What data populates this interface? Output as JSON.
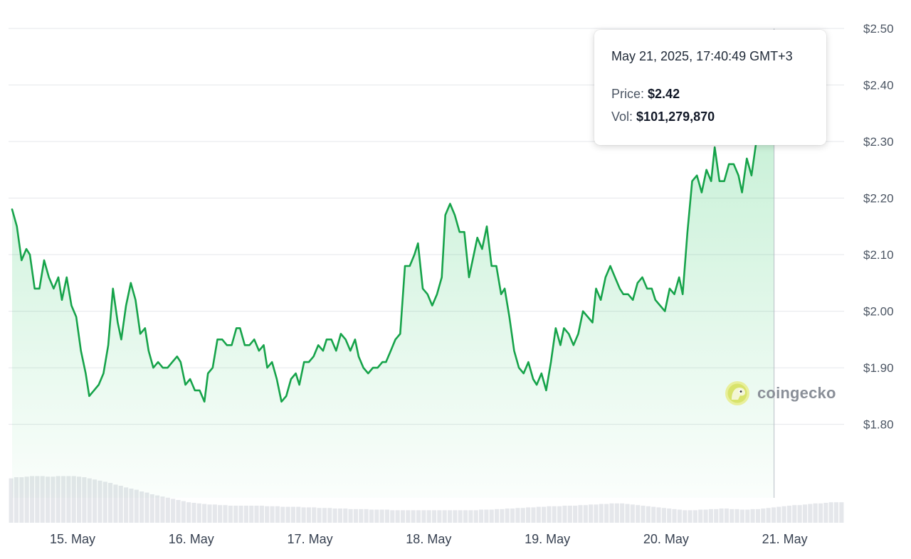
{
  "chart_data": {
    "type": "line",
    "title": "",
    "xlabel": "",
    "ylabel": "",
    "ylim": [
      1.67,
      2.51
    ],
    "y_ticks": [
      {
        "value": 2.5,
        "label": "$2.50"
      },
      {
        "value": 2.4,
        "label": "$2.40"
      },
      {
        "value": 2.3,
        "label": "$2.30"
      },
      {
        "value": 2.2,
        "label": "$2.20"
      },
      {
        "value": 2.1,
        "label": "$2.10"
      },
      {
        "value": 2.0,
        "label": "$2.00"
      },
      {
        "value": 1.9,
        "label": "$1.90"
      },
      {
        "value": 1.8,
        "label": "$1.80"
      }
    ],
    "x_ticks": [
      {
        "value": 15,
        "label": "15. May"
      },
      {
        "value": 16,
        "label": "16. May"
      },
      {
        "value": 17,
        "label": "17. May"
      },
      {
        "value": 18,
        "label": "18. May"
      },
      {
        "value": 19,
        "label": "19. May"
      },
      {
        "value": 20,
        "label": "20. May"
      },
      {
        "value": 21,
        "label": "21. May"
      }
    ],
    "xlim": [
      14.73,
      21.74
    ],
    "grid": true,
    "colors": {
      "line": "#16a34a",
      "area_top": "#16a34a",
      "grid": "#e5e7eb",
      "volume": "#e5e7eb",
      "marker_halo": "#86efac"
    },
    "series": [
      {
        "values": [
          [
            14.73,
            2.18
          ],
          [
            14.77,
            2.15
          ],
          [
            14.81,
            2.09
          ],
          [
            14.85,
            2.11
          ],
          [
            14.88,
            2.1
          ],
          [
            14.92,
            2.04
          ],
          [
            14.96,
            2.04
          ],
          [
            15.0,
            2.09
          ],
          [
            15.04,
            2.06
          ],
          [
            15.08,
            2.04
          ],
          [
            15.12,
            2.06
          ],
          [
            15.15,
            2.02
          ],
          [
            15.19,
            2.06
          ],
          [
            15.23,
            2.01
          ],
          [
            15.27,
            1.99
          ],
          [
            15.31,
            1.93
          ],
          [
            15.35,
            1.89
          ],
          [
            15.38,
            1.85
          ],
          [
            15.42,
            1.86
          ],
          [
            15.46,
            1.87
          ],
          [
            15.5,
            1.89
          ],
          [
            15.54,
            1.94
          ],
          [
            15.58,
            2.04
          ],
          [
            15.62,
            1.98
          ],
          [
            15.65,
            1.95
          ],
          [
            15.69,
            2.01
          ],
          [
            15.73,
            2.05
          ],
          [
            15.77,
            2.02
          ],
          [
            15.81,
            1.96
          ],
          [
            15.85,
            1.97
          ],
          [
            15.88,
            1.93
          ],
          [
            15.92,
            1.9
          ],
          [
            15.96,
            1.91
          ],
          [
            16.0,
            1.9
          ],
          [
            16.04,
            1.9
          ],
          [
            16.08,
            1.91
          ],
          [
            16.12,
            1.92
          ],
          [
            16.15,
            1.91
          ],
          [
            16.19,
            1.87
          ],
          [
            16.23,
            1.88
          ],
          [
            16.27,
            1.86
          ],
          [
            16.31,
            1.86
          ],
          [
            16.35,
            1.84
          ],
          [
            16.38,
            1.89
          ],
          [
            16.42,
            1.9
          ],
          [
            16.46,
            1.95
          ],
          [
            16.5,
            1.95
          ],
          [
            16.54,
            1.94
          ],
          [
            16.58,
            1.94
          ],
          [
            16.62,
            1.97
          ],
          [
            16.65,
            1.97
          ],
          [
            16.69,
            1.94
          ],
          [
            16.73,
            1.94
          ],
          [
            16.77,
            1.95
          ],
          [
            16.81,
            1.93
          ],
          [
            16.85,
            1.94
          ],
          [
            16.88,
            1.9
          ],
          [
            16.92,
            1.91
          ],
          [
            16.96,
            1.88
          ],
          [
            17.0,
            1.84
          ],
          [
            17.04,
            1.85
          ],
          [
            17.08,
            1.88
          ],
          [
            17.12,
            1.89
          ],
          [
            17.15,
            1.87
          ],
          [
            17.19,
            1.91
          ],
          [
            17.23,
            1.91
          ],
          [
            17.27,
            1.92
          ],
          [
            17.31,
            1.94
          ],
          [
            17.35,
            1.93
          ],
          [
            17.38,
            1.95
          ],
          [
            17.42,
            1.95
          ],
          [
            17.46,
            1.93
          ],
          [
            17.5,
            1.96
          ],
          [
            17.54,
            1.95
          ],
          [
            17.58,
            1.93
          ],
          [
            17.62,
            1.95
          ],
          [
            17.65,
            1.92
          ],
          [
            17.69,
            1.9
          ],
          [
            17.73,
            1.89
          ],
          [
            17.77,
            1.9
          ],
          [
            17.81,
            1.9
          ],
          [
            17.85,
            1.91
          ],
          [
            17.88,
            1.91
          ],
          [
            17.92,
            1.93
          ],
          [
            17.96,
            1.95
          ],
          [
            18.0,
            1.96
          ],
          [
            18.04,
            2.08
          ],
          [
            18.08,
            2.08
          ],
          [
            18.12,
            2.1
          ],
          [
            18.15,
            2.12
          ],
          [
            18.19,
            2.04
          ],
          [
            18.23,
            2.03
          ],
          [
            18.27,
            2.01
          ],
          [
            18.31,
            2.03
          ],
          [
            18.35,
            2.06
          ],
          [
            18.38,
            2.17
          ],
          [
            18.42,
            2.19
          ],
          [
            18.46,
            2.17
          ],
          [
            18.5,
            2.14
          ],
          [
            18.54,
            2.14
          ],
          [
            18.58,
            2.06
          ],
          [
            18.62,
            2.1
          ],
          [
            18.65,
            2.13
          ],
          [
            18.69,
            2.11
          ],
          [
            18.73,
            2.15
          ],
          [
            18.77,
            2.08
          ],
          [
            18.81,
            2.08
          ],
          [
            18.85,
            2.03
          ],
          [
            18.88,
            2.04
          ],
          [
            18.92,
            1.99
          ],
          [
            18.96,
            1.93
          ],
          [
            19.0,
            1.9
          ],
          [
            19.04,
            1.89
          ],
          [
            19.08,
            1.91
          ],
          [
            19.12,
            1.88
          ],
          [
            19.15,
            1.87
          ],
          [
            19.19,
            1.89
          ],
          [
            19.23,
            1.86
          ],
          [
            19.27,
            1.91
          ],
          [
            19.31,
            1.97
          ],
          [
            19.35,
            1.94
          ],
          [
            19.38,
            1.97
          ],
          [
            19.42,
            1.96
          ],
          [
            19.46,
            1.94
          ],
          [
            19.5,
            1.96
          ],
          [
            19.54,
            2.0
          ],
          [
            19.58,
            1.99
          ],
          [
            19.62,
            1.98
          ],
          [
            19.65,
            2.04
          ],
          [
            19.69,
            2.02
          ],
          [
            19.73,
            2.06
          ],
          [
            19.77,
            2.08
          ],
          [
            19.81,
            2.06
          ],
          [
            19.85,
            2.04
          ],
          [
            19.88,
            2.03
          ],
          [
            19.92,
            2.03
          ],
          [
            19.96,
            2.02
          ],
          [
            20.0,
            2.05
          ],
          [
            20.04,
            2.06
          ],
          [
            20.08,
            2.04
          ],
          [
            20.12,
            2.04
          ],
          [
            20.15,
            2.02
          ],
          [
            20.19,
            2.01
          ],
          [
            20.23,
            2.0
          ],
          [
            20.27,
            2.04
          ],
          [
            20.31,
            2.03
          ],
          [
            20.35,
            2.06
          ],
          [
            20.38,
            2.03
          ],
          [
            20.42,
            2.14
          ],
          [
            20.46,
            2.23
          ],
          [
            20.5,
            2.24
          ],
          [
            20.54,
            2.21
          ],
          [
            20.58,
            2.25
          ],
          [
            20.62,
            2.23
          ],
          [
            20.65,
            2.29
          ],
          [
            20.69,
            2.23
          ],
          [
            20.73,
            2.23
          ],
          [
            20.77,
            2.26
          ],
          [
            20.81,
            2.26
          ],
          [
            20.85,
            2.24
          ],
          [
            20.88,
            2.21
          ],
          [
            20.92,
            2.27
          ],
          [
            20.96,
            2.24
          ],
          [
            21.0,
            2.3
          ],
          [
            21.04,
            2.34
          ],
          [
            21.08,
            2.32
          ],
          [
            21.12,
            2.37
          ],
          [
            21.15,
            2.42
          ]
        ]
      }
    ],
    "volume": [
      0.78,
      0.8,
      0.8,
      0.81,
      0.82,
      0.82,
      0.82,
      0.81,
      0.81,
      0.82,
      0.82,
      0.82,
      0.82,
      0.81,
      0.8,
      0.78,
      0.76,
      0.74,
      0.72,
      0.7,
      0.67,
      0.65,
      0.62,
      0.6,
      0.58,
      0.55,
      0.53,
      0.5,
      0.48,
      0.46,
      0.44,
      0.42,
      0.4,
      0.38,
      0.36,
      0.35,
      0.34,
      0.33,
      0.32,
      0.32,
      0.31,
      0.31,
      0.3,
      0.3,
      0.3,
      0.3,
      0.3,
      0.3,
      0.3,
      0.29,
      0.29,
      0.29,
      0.28,
      0.28,
      0.28,
      0.28,
      0.27,
      0.27,
      0.27,
      0.26,
      0.26,
      0.26,
      0.25,
      0.25,
      0.25,
      0.24,
      0.24,
      0.24,
      0.24,
      0.23,
      0.23,
      0.23,
      0.23,
      0.22,
      0.22,
      0.22,
      0.22,
      0.22,
      0.22,
      0.22,
      0.22,
      0.22,
      0.22,
      0.22,
      0.22,
      0.22,
      0.22,
      0.22,
      0.22,
      0.22,
      0.23,
      0.23,
      0.23,
      0.24,
      0.24,
      0.25,
      0.25,
      0.26,
      0.26,
      0.27,
      0.27,
      0.28,
      0.28,
      0.29,
      0.29,
      0.29,
      0.3,
      0.3,
      0.3,
      0.31,
      0.31,
      0.32,
      0.32,
      0.33,
      0.33,
      0.34,
      0.34,
      0.34,
      0.33,
      0.32,
      0.31,
      0.3,
      0.29,
      0.28,
      0.27,
      0.26,
      0.25,
      0.24,
      0.23,
      0.22,
      0.22,
      0.22,
      0.23,
      0.23,
      0.24,
      0.24,
      0.25,
      0.25,
      0.24,
      0.24,
      0.23,
      0.23,
      0.24,
      0.24,
      0.25,
      0.26,
      0.27,
      0.28,
      0.29,
      0.3,
      0.31,
      0.31,
      0.32,
      0.33,
      0.34,
      0.34,
      0.35,
      0.36,
      0.36,
      0.36
    ]
  },
  "tooltip": {
    "date": "May 21, 2025, 17:40:49 GMT+3",
    "price_label": "Price:",
    "price_value": "$2.42",
    "vol_label": "Vol:",
    "vol_value": "$101,279,870"
  },
  "watermark": {
    "text": "coingecko",
    "logo": "coingecko-gecko-icon"
  }
}
